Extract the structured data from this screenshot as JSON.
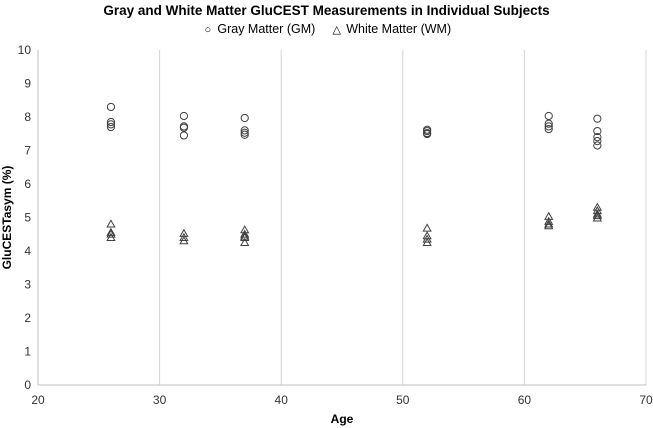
{
  "chart_data": {
    "type": "scatter",
    "title": "Gray and White Matter GluCEST Measurements in Individual Subjects",
    "xlabel": "Age",
    "ylabel": "GluCESTasym (%)",
    "xlim": [
      20,
      70
    ],
    "ylim": [
      0,
      10
    ],
    "x_ticks": [
      20,
      30,
      40,
      50,
      60,
      70
    ],
    "y_ticks": [
      0,
      1,
      2,
      3,
      4,
      5,
      6,
      7,
      8,
      9,
      10
    ],
    "grid": "vertical",
    "legend_position": "top",
    "series": [
      {
        "name": "Gray Matter (GM)",
        "marker": "circle",
        "points": [
          [
            26,
            8.3
          ],
          [
            26,
            7.85
          ],
          [
            26,
            7.78
          ],
          [
            26,
            7.7
          ],
          [
            32,
            8.03
          ],
          [
            32,
            7.72
          ],
          [
            32,
            7.68
          ],
          [
            32,
            7.45
          ],
          [
            37,
            7.97
          ],
          [
            37,
            7.6
          ],
          [
            37,
            7.53
          ],
          [
            37,
            7.47
          ],
          [
            52,
            7.62
          ],
          [
            52,
            7.58
          ],
          [
            52,
            7.52
          ],
          [
            52,
            7.49
          ],
          [
            62,
            8.03
          ],
          [
            62,
            7.8
          ],
          [
            62,
            7.72
          ],
          [
            62,
            7.64
          ],
          [
            66,
            7.95
          ],
          [
            66,
            7.58
          ],
          [
            66,
            7.4
          ],
          [
            66,
            7.28
          ],
          [
            66,
            7.15
          ]
        ]
      },
      {
        "name": "White Matter (WM)",
        "marker": "triangle",
        "points": [
          [
            26,
            4.8
          ],
          [
            26,
            4.55
          ],
          [
            26,
            4.5
          ],
          [
            26,
            4.4
          ],
          [
            32,
            4.52
          ],
          [
            32,
            4.4
          ],
          [
            32,
            4.3
          ],
          [
            37,
            4.63
          ],
          [
            37,
            4.5
          ],
          [
            37,
            4.44
          ],
          [
            37,
            4.4
          ],
          [
            37,
            4.25
          ],
          [
            52,
            4.68
          ],
          [
            52,
            4.45
          ],
          [
            52,
            4.35
          ],
          [
            52,
            4.25
          ],
          [
            62,
            5.03
          ],
          [
            62,
            4.88
          ],
          [
            62,
            4.8
          ],
          [
            62,
            4.75
          ],
          [
            66,
            5.3
          ],
          [
            66,
            5.2
          ],
          [
            66,
            5.1
          ],
          [
            66,
            5.05
          ],
          [
            66,
            4.98
          ]
        ]
      }
    ]
  }
}
